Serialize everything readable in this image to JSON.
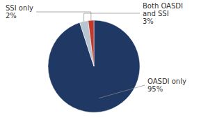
{
  "chart_data": {
    "type": "pie",
    "categories": [
      "OASDI only",
      "Both OASDI\nand SSI",
      "SSI only"
    ],
    "values": [
      95,
      3,
      2
    ],
    "value_labels": [
      "95%",
      "3%",
      "2%"
    ],
    "colors": [
      "#1f3864",
      "#b8c4d0",
      "#c0392b"
    ],
    "data_labels": true
  }
}
